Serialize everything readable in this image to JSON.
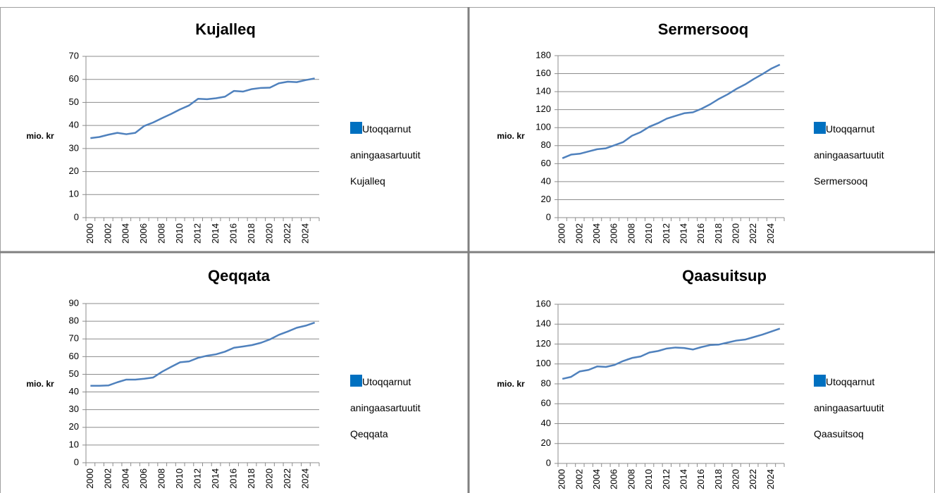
{
  "chart_data": [
    {
      "type": "line",
      "title": "Kujalleq",
      "ylabel": "mio. kr",
      "categories": [
        2000,
        null,
        2002,
        null,
        2004,
        null,
        2006,
        null,
        2008,
        null,
        2010,
        null,
        2012,
        null,
        2014,
        null,
        2016,
        null,
        2018,
        null,
        2020,
        null,
        2022,
        null,
        2024,
        null
      ],
      "series": [
        {
          "name": "Utoqqarnut aningaasartuutit Kujalleq",
          "color": "#4f81bd",
          "values": [
            34.5,
            35,
            36,
            36.8,
            36.2,
            36.8,
            39.8,
            41.3,
            43.2,
            45,
            47,
            48.7,
            51.6,
            51.4,
            51.8,
            52.5,
            55,
            54.7,
            55.8,
            56.3,
            56.4,
            58.3,
            59,
            58.8,
            59.7,
            60.4
          ]
        }
      ],
      "ylim": [
        0,
        70
      ],
      "yticks": [
        0,
        10,
        20,
        30,
        40,
        50,
        60,
        70
      ],
      "grid": true
    },
    {
      "type": "line",
      "title": "Sermersooq",
      "ylabel": "mio. kr",
      "categories": [
        2000,
        null,
        2002,
        null,
        2004,
        null,
        2006,
        null,
        2008,
        null,
        2010,
        null,
        2012,
        null,
        2014,
        null,
        2016,
        null,
        2018,
        null,
        2020,
        null,
        2022,
        null,
        2024,
        null
      ],
      "series": [
        {
          "name": "Utoqqarnut aningaasartuutit Sermersooq",
          "color": "#4f81bd",
          "values": [
            66,
            70,
            71,
            73.5,
            76,
            77,
            80.5,
            84,
            91,
            95,
            101,
            105,
            110,
            113,
            116,
            117,
            121,
            126,
            132,
            137,
            143,
            148,
            154,
            159.5,
            165.5,
            170
          ]
        }
      ],
      "ylim": [
        0,
        180
      ],
      "yticks": [
        0,
        20,
        40,
        60,
        80,
        100,
        120,
        140,
        160,
        180
      ],
      "grid": true
    },
    {
      "type": "line",
      "title": "Qeqqata",
      "ylabel": "mio. kr",
      "categories": [
        2000,
        null,
        2002,
        null,
        2004,
        null,
        2006,
        null,
        2008,
        null,
        2010,
        null,
        2012,
        null,
        2014,
        null,
        2016,
        null,
        2018,
        null,
        2020,
        null,
        2022,
        null,
        2024,
        null
      ],
      "series": [
        {
          "name": "Utoqqarnut aningaasartuutit Qeqqata",
          "color": "#4f81bd",
          "values": [
            43.5,
            43.5,
            43.7,
            45.5,
            47,
            47,
            47.5,
            48.2,
            51.5,
            54.2,
            56.8,
            57.3,
            59.3,
            60.5,
            61.3,
            62.8,
            65,
            65.7,
            66.5,
            67.8,
            69.7,
            72.3,
            74.2,
            76.3,
            77.5,
            79.2
          ]
        }
      ],
      "ylim": [
        0,
        90
      ],
      "yticks": [
        0,
        10,
        20,
        30,
        40,
        50,
        60,
        70,
        80,
        90
      ],
      "grid": true
    },
    {
      "type": "line",
      "title": "Qaasuitsup",
      "ylabel": "mio. kr",
      "categories": [
        2000,
        null,
        2002,
        null,
        2004,
        null,
        2006,
        null,
        2008,
        null,
        2010,
        null,
        2012,
        null,
        2014,
        null,
        2016,
        null,
        2018,
        null,
        2020,
        null,
        2022,
        null,
        2024,
        null
      ],
      "series": [
        {
          "name": "Utoqqarnut aningaasartuutit Qaasuitsoq",
          "color": "#4f81bd",
          "values": [
            85,
            87,
            92.5,
            94,
            97.5,
            97,
            99,
            103,
            106,
            107.5,
            111.5,
            113,
            115.5,
            116.5,
            116,
            114.5,
            117,
            119,
            119.5,
            121.5,
            123.5,
            124.5,
            127,
            129.5,
            132.5,
            135.5
          ]
        }
      ],
      "ylim": [
        0,
        160
      ],
      "yticks": [
        0,
        20,
        40,
        60,
        80,
        100,
        120,
        140,
        160
      ],
      "grid": true
    }
  ]
}
